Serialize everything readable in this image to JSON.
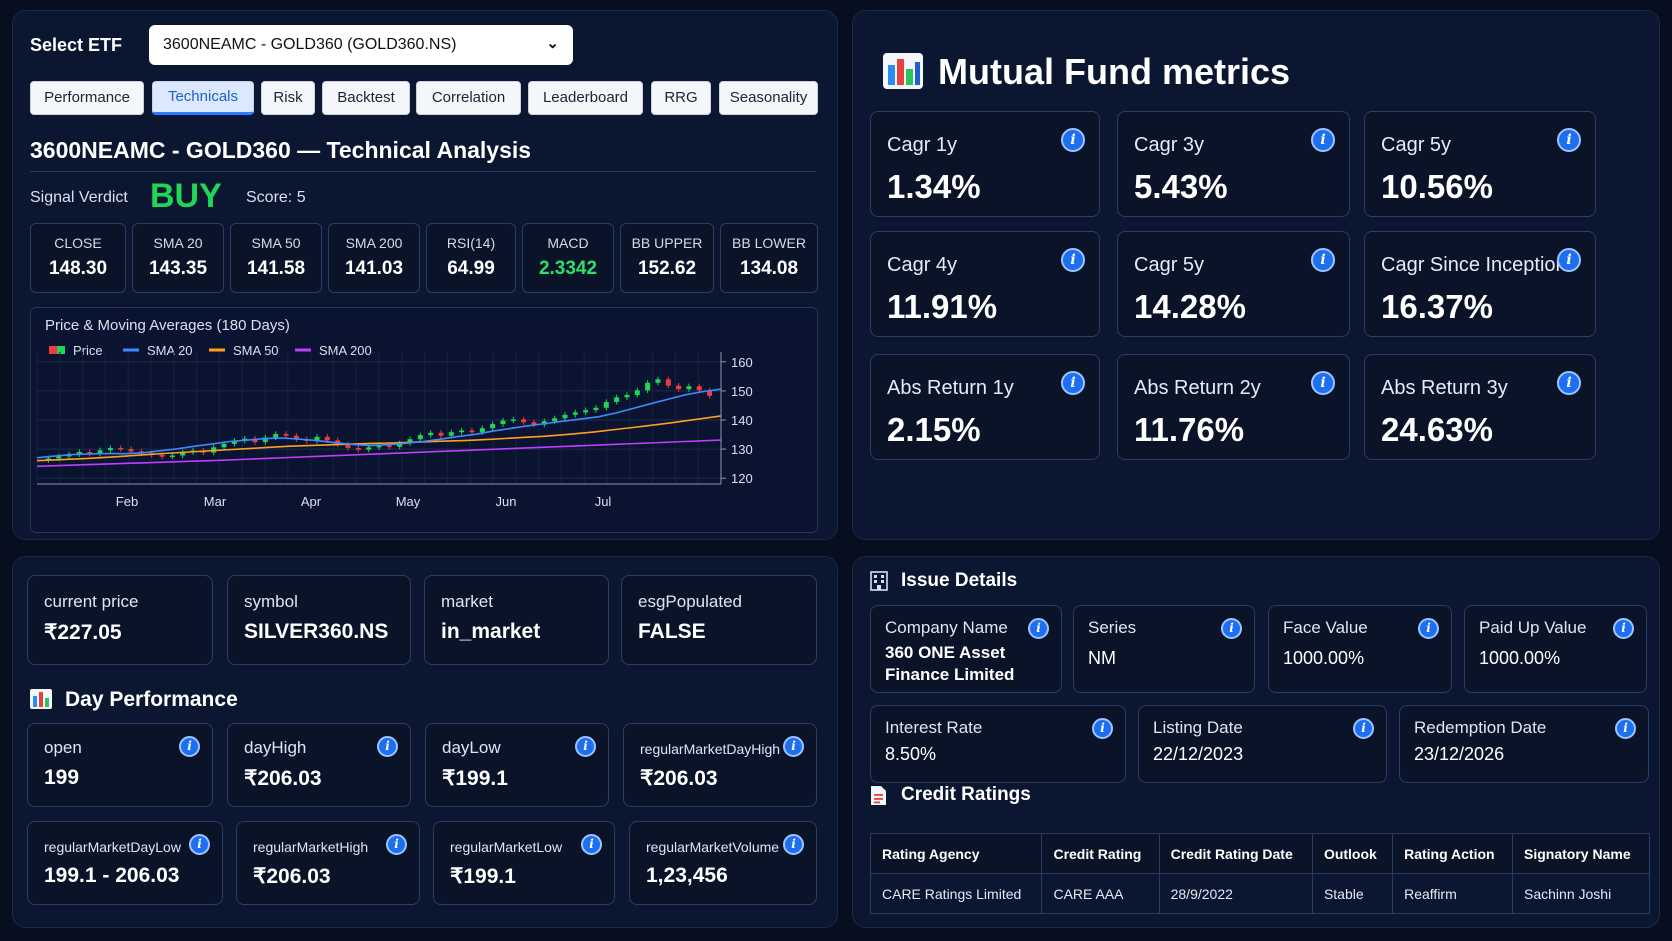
{
  "technicals": {
    "select_label": "Select ETF",
    "selected_etf": "3600NEAMC - GOLD360 (GOLD360.NS)",
    "tabs": [
      "Performance",
      "Technicals",
      "Risk",
      "Backtest",
      "Correlation",
      "Leaderboard",
      "RRG",
      "Seasonality"
    ],
    "active_tab": "Technicals",
    "title": "3600NEAMC - GOLD360 — Technical Analysis",
    "verdict_label": "Signal Verdict",
    "verdict": "BUY",
    "score": "Score: 5",
    "stats": [
      {
        "label": "CLOSE",
        "value": "148.30"
      },
      {
        "label": "SMA 20",
        "value": "143.35"
      },
      {
        "label": "SMA 50",
        "value": "141.58"
      },
      {
        "label": "SMA 200",
        "value": "141.03"
      },
      {
        "label": "RSI(14)",
        "value": "64.99"
      },
      {
        "label": "MACD",
        "value": "2.3342"
      },
      {
        "label": "BB UPPER",
        "value": "152.62"
      },
      {
        "label": "BB LOWER",
        "value": "134.08"
      }
    ],
    "colors": {
      "buy": "#1fd655",
      "macd": "#2ee06a",
      "active_tab": "#1f5fd3"
    }
  },
  "chart_data": {
    "type": "line",
    "title": "Price & Moving Averages (180 Days)",
    "legend": [
      "Price",
      "SMA 20",
      "SMA 50",
      "SMA 200"
    ],
    "legend_placement": "top-left",
    "series_colors": {
      "Price": "#ef3b3b",
      "SMA 20": "#3d8bff",
      "SMA 50": "#ff9f1c",
      "SMA 200": "#c13cff"
    },
    "x_ticks": [
      "Feb",
      "Mar",
      "Apr",
      "May",
      "Jun",
      "Jul"
    ],
    "y_ticks": [
      120,
      130,
      140,
      150,
      160
    ],
    "ylim": [
      118,
      162
    ],
    "x_range_days": [
      0,
      180
    ],
    "grid": true,
    "price_close": [
      126.8,
      127.5,
      128.2,
      129.0,
      128.4,
      129.6,
      130.4,
      130.0,
      129.2,
      128.6,
      128.0,
      127.4,
      127.8,
      128.9,
      129.5,
      128.8,
      130.6,
      131.8,
      132.9,
      133.6,
      132.4,
      134.0,
      135.2,
      134.6,
      133.4,
      132.8,
      134.2,
      133.0,
      131.6,
      130.4,
      129.8,
      130.6,
      131.2,
      130.8,
      132.0,
      133.4,
      134.8,
      135.6,
      134.6,
      135.8,
      136.4,
      135.8,
      137.2,
      138.6,
      139.8,
      140.2,
      139.2,
      138.4,
      139.6,
      140.6,
      141.8,
      142.6,
      143.4,
      144.2,
      146.2,
      147.8,
      148.6,
      150.2,
      152.8,
      154.0,
      151.8,
      150.6,
      151.6,
      150.2,
      148.3
    ],
    "sma20": [
      127.0,
      127.6,
      128.1,
      128.3,
      128.5,
      128.4,
      128.7,
      129.4,
      130.1,
      131.0,
      131.8,
      132.6,
      133.1,
      133.6,
      133.8,
      133.4,
      132.9,
      132.2,
      131.6,
      131.2,
      131.5,
      132.0,
      132.6,
      133.4,
      134.3,
      135.1,
      136.2,
      137.1,
      138.0,
      138.8,
      139.6,
      140.3,
      141.1,
      142.4,
      144.0,
      145.6,
      147.2,
      148.7,
      149.8,
      150.6
    ],
    "sma50": [
      126.0,
      126.4,
      126.8,
      127.3,
      127.9,
      128.5,
      129.0,
      129.5,
      130.0,
      130.5,
      131.0,
      131.3,
      131.6,
      131.9,
      132.1,
      132.4,
      132.7,
      133.0,
      133.4,
      133.9,
      134.4,
      135.1,
      135.9,
      136.9,
      137.9,
      139.0,
      140.2,
      141.4
    ],
    "sma200": [
      124.1,
      124.5,
      124.9,
      125.3,
      125.7,
      126.1,
      126.6,
      127.1,
      127.6,
      128.1,
      128.6,
      129.1,
      129.6,
      130.1,
      130.6,
      131.1,
      131.6,
      132.1,
      132.6,
      133.1
    ]
  },
  "mutual_fund": {
    "title": "Mutual Fund metrics",
    "metrics": [
      {
        "label": "Cagr 1y",
        "value": "1.34%"
      },
      {
        "label": "Cagr 3y",
        "value": "5.43%"
      },
      {
        "label": "Cagr 5y",
        "value": "10.56%"
      },
      {
        "label": "Cagr 4y",
        "value": "11.91%"
      },
      {
        "label": "Cagr 5y",
        "value": "14.28%"
      },
      {
        "label": "Cagr Since Inception",
        "value": "16.37%"
      },
      {
        "label": "Abs Return 1y",
        "value": "2.15%"
      },
      {
        "label": "Abs Return 2y",
        "value": "11.76%"
      },
      {
        "label": "Abs Return 3y",
        "value": "24.63%"
      }
    ],
    "info_glyph": "i"
  },
  "quote": {
    "cards": [
      {
        "label": "current price",
        "value": "₹227.05"
      },
      {
        "label": "symbol",
        "value": "SILVER360.NS"
      },
      {
        "label": "market",
        "value": "in_market"
      },
      {
        "label": "esgPopulated",
        "value": "FALSE"
      }
    ],
    "day_performance_title": "Day Performance",
    "day_performance": [
      {
        "label": "open",
        "value": "199"
      },
      {
        "label": "dayHigh",
        "value": "₹206.03"
      },
      {
        "label": "dayLow",
        "value": "₹199.1"
      },
      {
        "label": "regularMarketDayHigh",
        "value": "₹206.03"
      },
      {
        "label": "regularMarketDayLow",
        "value": "199.1 - 206.03"
      },
      {
        "label": "regularMarketHigh",
        "value": "₹206.03"
      },
      {
        "label": "regularMarketLow",
        "value": "₹199.1"
      },
      {
        "label": "regularMarketVolume",
        "value": "1,23,456"
      }
    ]
  },
  "issue": {
    "title": "Issue Details",
    "row1": [
      {
        "label": "Company Name",
        "value": "360 ONE Asset Finance Limited"
      },
      {
        "label": "Series",
        "value": "NM"
      },
      {
        "label": "Face Value",
        "value": "1000.00%"
      },
      {
        "label": "Paid Up Value",
        "value": "1000.00%"
      }
    ],
    "row2": [
      {
        "label": "Interest Rate",
        "value": "8.50%"
      },
      {
        "label": "Listing Date",
        "value": "22/12/2023"
      },
      {
        "label": "Redemption Date",
        "value": "23/12/2026"
      }
    ],
    "credit_title": "Credit Ratings",
    "credit_headers": [
      "Rating Agency",
      "Credit Rating",
      "Credit Rating Date",
      "Outlook",
      "Rating Action",
      "Signatory Name"
    ],
    "credit_rows": [
      [
        "CARE Ratings Limited",
        "CARE AAA",
        "28/9/2022",
        "Stable",
        "Reaffirm",
        "Sachinn Joshi"
      ]
    ]
  }
}
